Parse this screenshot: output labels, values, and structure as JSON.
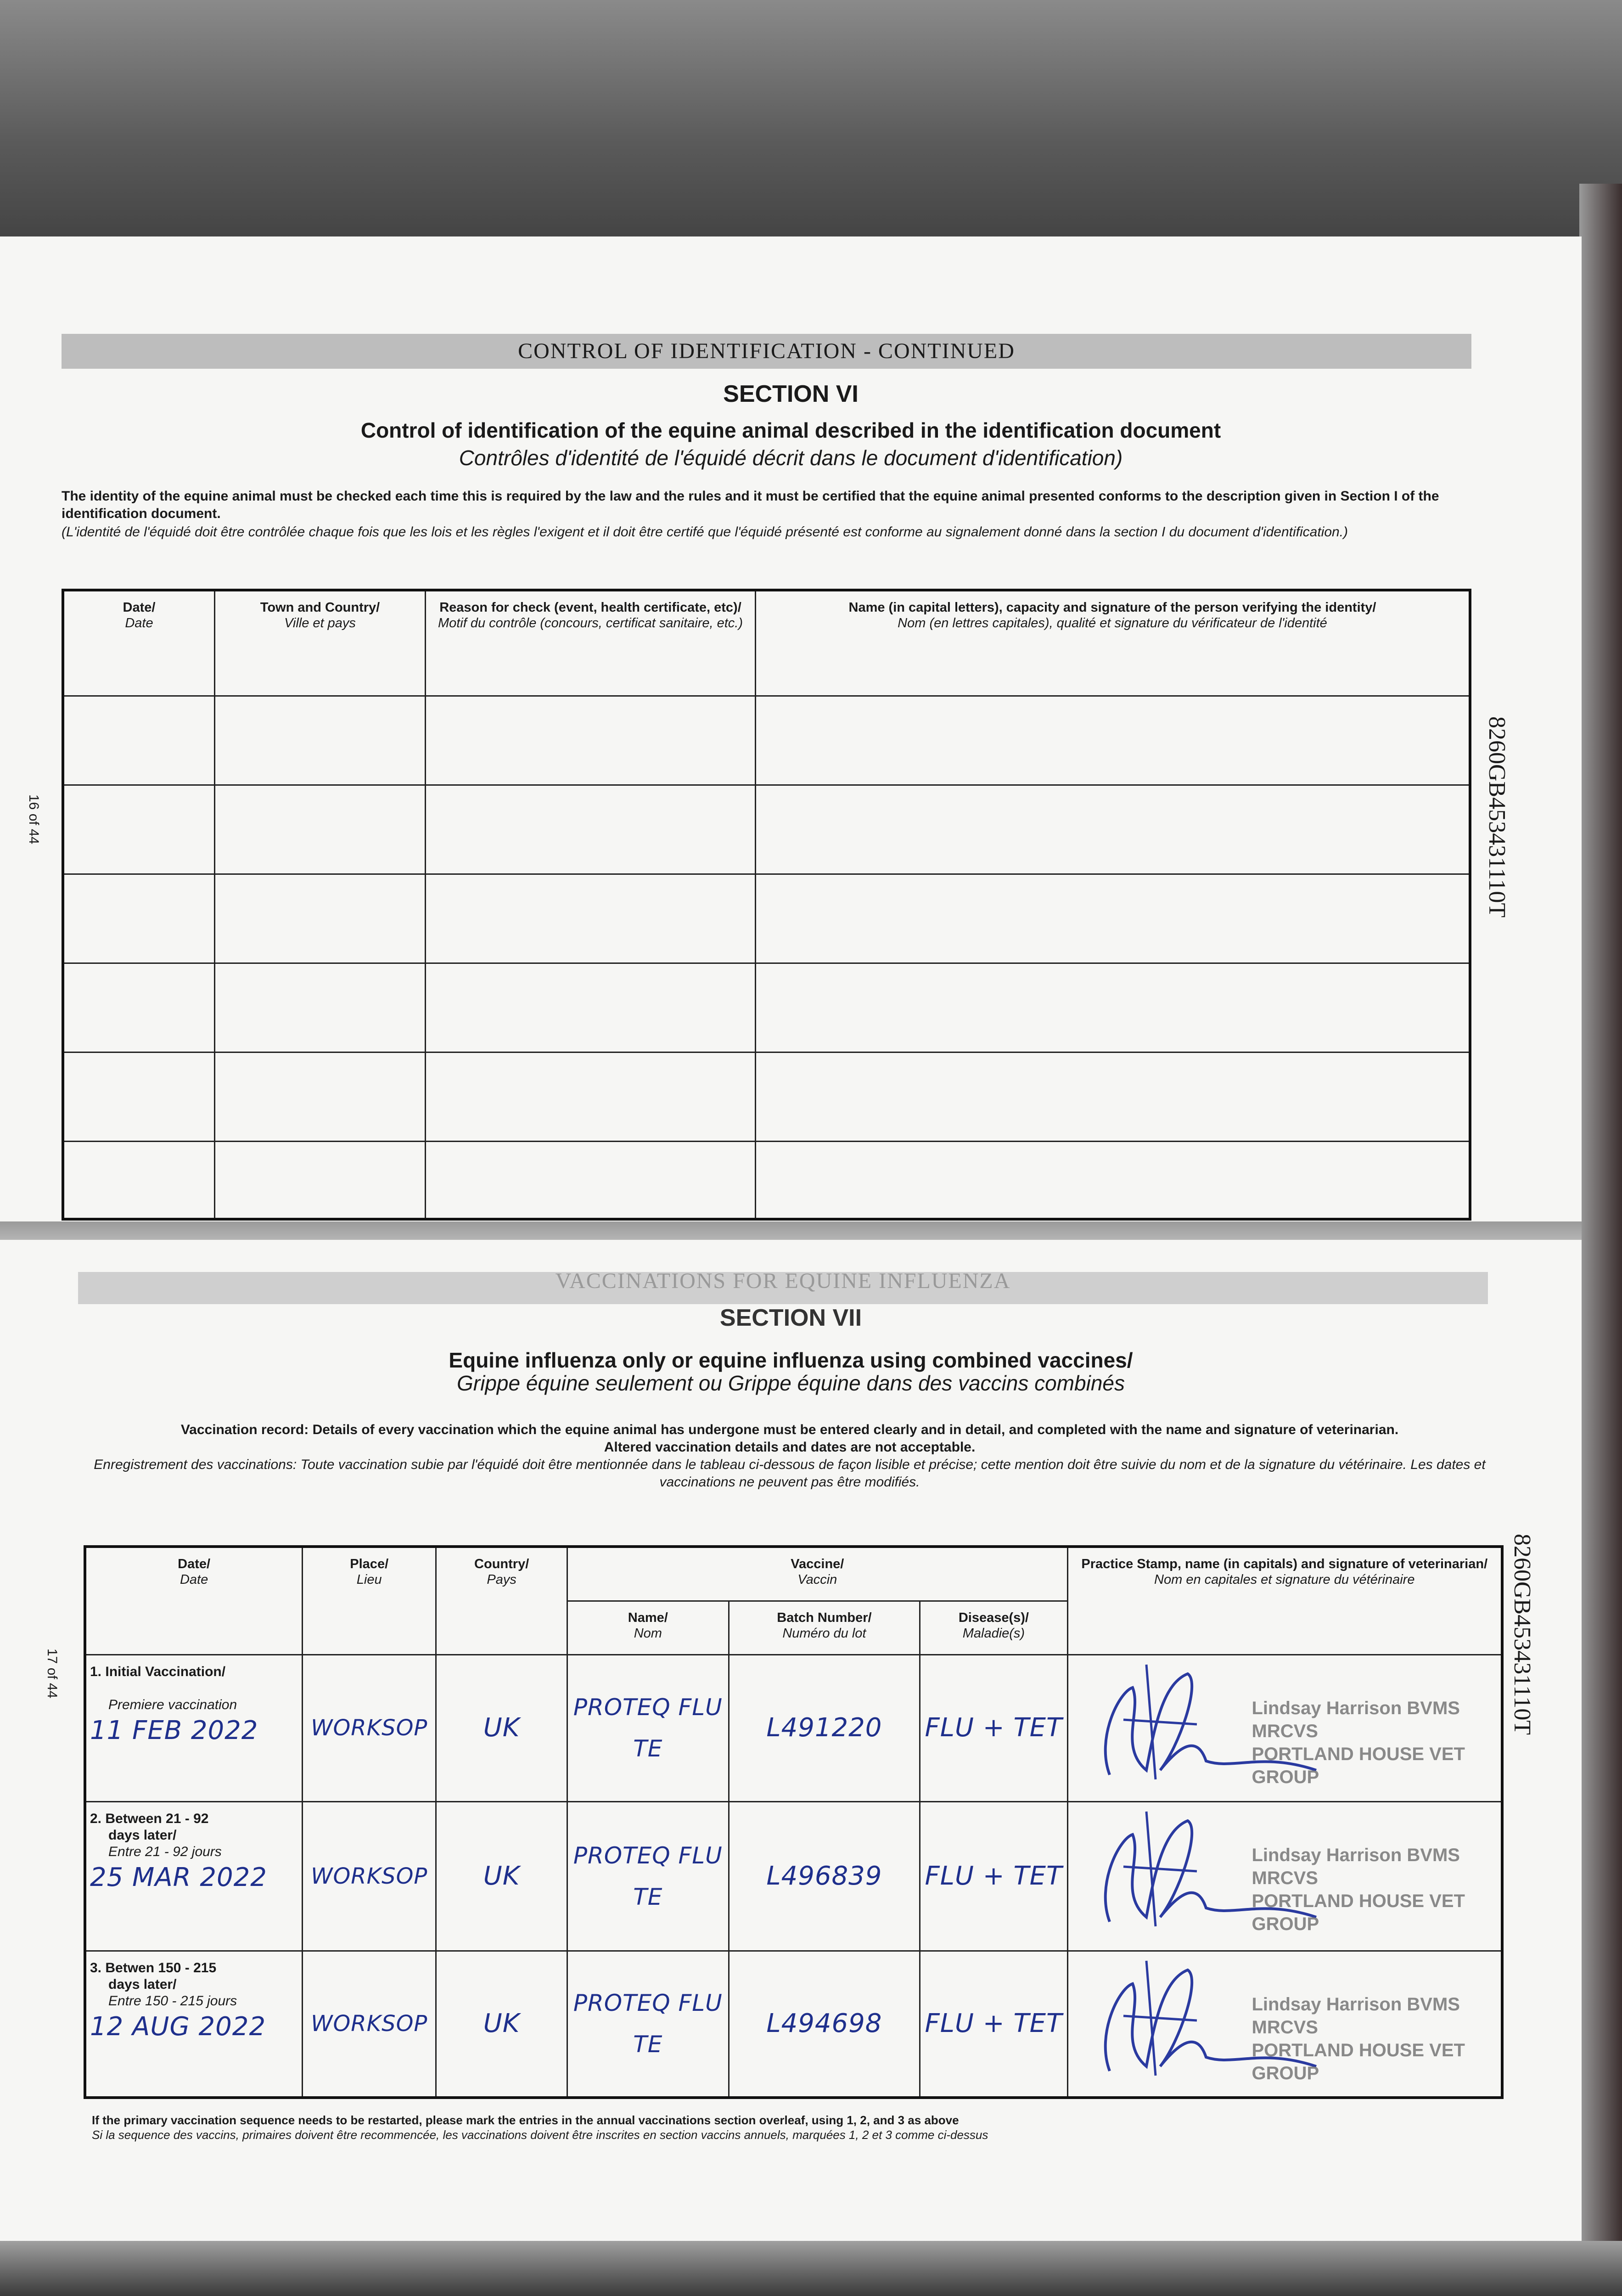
{
  "page_top": {
    "band_title": "CONTROL OF IDENTIFICATION - CONTINUED",
    "section": "SECTION VI",
    "subtitle": "Control of identification of the equine animal described in the identification document",
    "subtitle_fr": "Contrôles d'identité de l'équidé décrit dans le document d'identification)",
    "intro": "The identity of the equine animal must be checked each time this is required by the law and the rules and it must be certified that the equine animal presented conforms to the description given in Section I of the identification document.",
    "intro_fr": "(L'identité de l'équidé doit être contrôlée chaque fois que les lois et les règles l'exigent et il doit être certifé que l'équidé présenté est conforme au signalement donné dans la section I du document d'identification.)",
    "page_number": "16 of 44",
    "doc_id": "8260GB453431110T",
    "table": {
      "headers": [
        {
          "en": "Date/",
          "fr": "Date"
        },
        {
          "en": "Town and Country/",
          "fr": "Ville et pays"
        },
        {
          "en": "Reason for check (event, health certificate, etc)/",
          "fr": "Motif du contrôle (concours, certificat sanitaire, etc.)"
        },
        {
          "en": "Name (in capital letters), capacity and signature of the person verifying the identity/",
          "fr": "Nom (en lettres capitales), qualité et signature du vérificateur de l'identité"
        }
      ],
      "empty_rows": 6
    }
  },
  "page_bottom": {
    "band_title": "VACCINATIONS FOR EQUINE INFLUENZA",
    "section": "SECTION VII",
    "subtitle": "Equine influenza only or equine influenza using combined vaccines/",
    "subtitle_fr": "Grippe équine seulement ou Grippe équine dans des vaccins combinés",
    "intro": "Vaccination record: Details of every vaccination which the equine animal has undergone must be entered clearly and in detail, and completed with the name and signature of veterinarian.",
    "intro2": "Altered vaccination details and dates are not acceptable.",
    "intro_fr": "Enregistrement des vaccinations: Toute vaccination subie par l'équidé doit être mentionnée dans le tableau ci-dessous de façon lisible et précise; cette mention doit être suivie du nom et de la signature du vétérinaire. Les dates et vaccinations ne peuvent pas être modifiés.",
    "page_number": "17 of 44",
    "doc_id": "8260GB453431110T",
    "table": {
      "headers": {
        "date": {
          "en": "Date/",
          "fr": "Date"
        },
        "place": {
          "en": "Place/",
          "fr": "Lieu"
        },
        "country": {
          "en": "Country/",
          "fr": "Pays"
        },
        "vaccine": {
          "en": "Vaccine/",
          "fr": "Vaccin"
        },
        "name": {
          "en": "Name/",
          "fr": "Nom"
        },
        "batch": {
          "en": "Batch Number/",
          "fr": "Numéro du lot"
        },
        "disease": {
          "en": "Disease(s)/",
          "fr": "Maladie(s)"
        },
        "vet": {
          "en": "Practice Stamp, name (in capitals) and signature of veterinarian/",
          "fr": "Nom en capitales et signature du vétérinaire"
        }
      },
      "rows": [
        {
          "label": "1. Initial Vaccination/",
          "label2": "",
          "label_fr": "Premiere vaccination",
          "date": "11 FEB 2022",
          "place": "WORKSOP",
          "country": "UK",
          "vaccine_name": "PROTEQ FLU TE",
          "batch": "L491220",
          "disease": "FLU + TET",
          "stamp_name": "Lindsay Harrison BVMS MRCVS",
          "stamp_practice": "PORTLAND HOUSE VET GROUP"
        },
        {
          "label": "2. Between 21 - 92",
          "label2": "days later/",
          "label_fr": "Entre 21 - 92 jours",
          "date": "25 MAR 2022",
          "place": "WORKSOP",
          "country": "UK",
          "vaccine_name": "PROTEQ FLU TE",
          "batch": "L496839",
          "disease": "FLU + TET",
          "stamp_name": "Lindsay Harrison BVMS MRCVS",
          "stamp_practice": "PORTLAND HOUSE VET GROUP"
        },
        {
          "label": "3. Betwen 150 - 215",
          "label2": "days later/",
          "label_fr": "Entre 150 - 215 jours",
          "date": "12 AUG 2022",
          "place": "WORKSOP",
          "country": "UK",
          "vaccine_name": "PROTEQ FLU TE",
          "batch": "L494698",
          "disease": "FLU + TET",
          "stamp_name": "Lindsay Harrison BVMS MRCVS",
          "stamp_practice": "PORTLAND HOUSE VET GROUP"
        }
      ]
    },
    "footnote": "If the primary vaccination sequence needs to be restarted, please mark the entries in the annual vaccinations section overleaf, using 1, 2, and 3 as above",
    "footnote_fr": "Si la sequence des vaccins, primaires doivent être recommencée, les vaccinations doivent être inscrites en section vaccins annuels, marquées 1, 2 et 3 comme ci-dessus"
  },
  "colors": {
    "ink": "#1e2f8c",
    "stamp": "#777777",
    "band": "#bdbdbd"
  }
}
